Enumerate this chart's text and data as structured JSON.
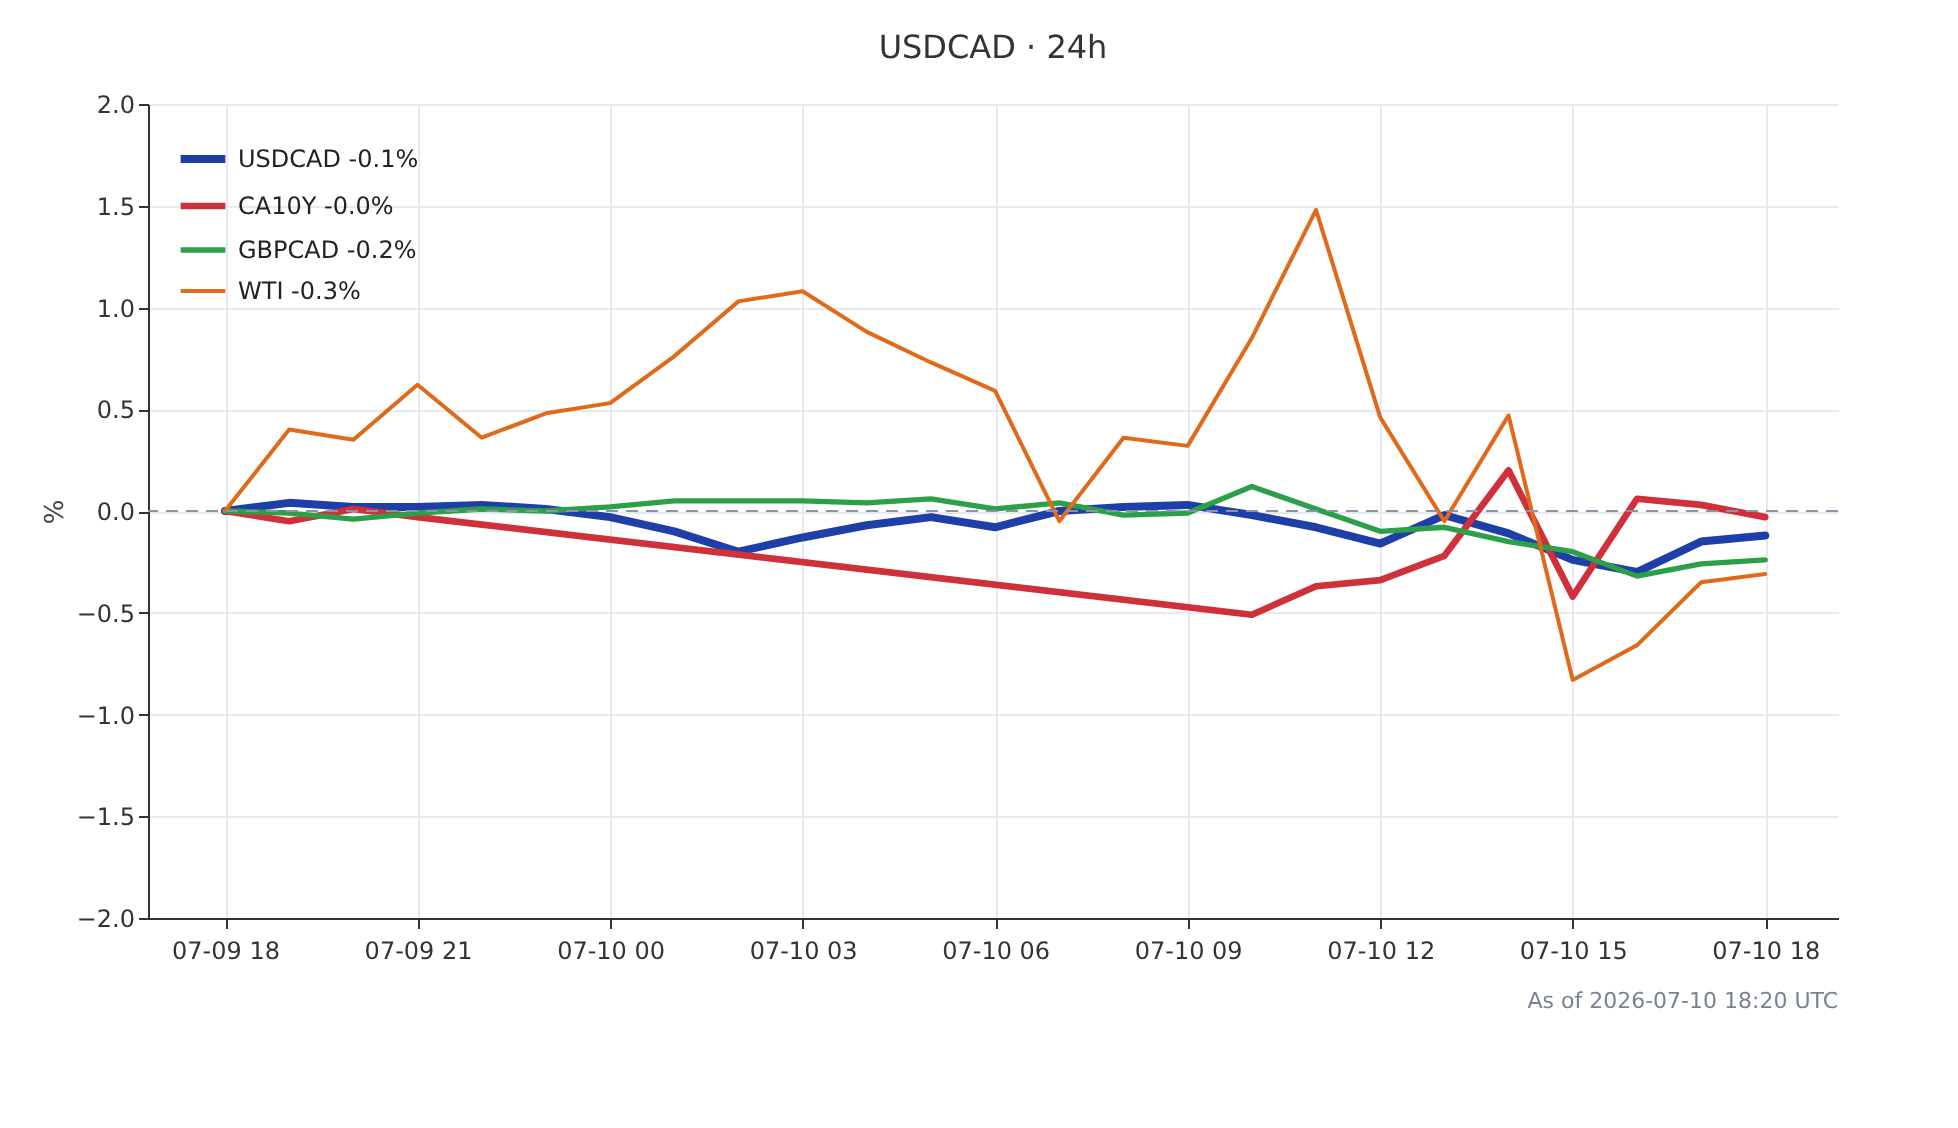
{
  "chart_data": {
    "type": "line",
    "title": "USDCAD · 24h",
    "ylabel": "%",
    "x": [
      "2026-07-09T18:00",
      "2026-07-09T19:00",
      "2026-07-09T20:00",
      "2026-07-09T21:00",
      "2026-07-09T22:00",
      "2026-07-09T23:00",
      "2026-07-10T00:00",
      "2026-07-10T01:00",
      "2026-07-10T02:00",
      "2026-07-10T03:00",
      "2026-07-10T04:00",
      "2026-07-10T05:00",
      "2026-07-10T06:00",
      "2026-07-10T07:00",
      "2026-07-10T08:00",
      "2026-07-10T09:00",
      "2026-07-10T10:00",
      "2026-07-10T11:00",
      "2026-07-10T12:00",
      "2026-07-10T13:00",
      "2026-07-10T14:00",
      "2026-07-10T15:00",
      "2026-07-10T16:00",
      "2026-07-10T17:00",
      "2026-07-10T18:00"
    ],
    "series": [
      {
        "name": "USDCAD -0.1%",
        "color": "#1f3fa8",
        "values": [
          0,
          0.04,
          0.02,
          0.02,
          0.03,
          0.01,
          -0.03,
          -0.1,
          -0.2,
          -0.13,
          -0.07,
          -0.03,
          -0.08,
          0.0,
          0.02,
          0.03,
          -0.02,
          -0.08,
          -0.16,
          -0.02,
          -0.11,
          -0.24,
          -0.3,
          -0.15,
          -0.12
        ]
      },
      {
        "name": "CA10Y -0.0%",
        "color": "#d0303a",
        "x": [
          "2026-07-09T18:00",
          "2026-07-09T19:00",
          "2026-07-09T20:00",
          "2026-07-09T21:00",
          "2026-07-10T10:00",
          "2026-07-10T11:00",
          "2026-07-10T12:00",
          "2026-07-10T13:00",
          "2026-07-10T14:00",
          "2026-07-10T15:00",
          "2026-07-10T16:00",
          "2026-07-10T17:00",
          "2026-07-10T18:00"
        ],
        "values": [
          0,
          -0.05,
          0.01,
          -0.03,
          -0.51,
          -0.37,
          -0.34,
          -0.22,
          0.2,
          -0.42,
          0.06,
          0.03,
          -0.03
        ]
      },
      {
        "name": "GBPCAD -0.2%",
        "color": "#2ca048",
        "values": [
          0,
          -0.01,
          -0.04,
          -0.01,
          0.01,
          0.0,
          0.02,
          0.05,
          0.05,
          0.05,
          0.04,
          0.06,
          0.01,
          0.04,
          -0.02,
          -0.01,
          0.12,
          0.01,
          -0.1,
          -0.08,
          -0.15,
          -0.2,
          -0.32,
          -0.26,
          -0.24
        ]
      },
      {
        "name": "WTI -0.3%",
        "color": "#e06a1a",
        "values": [
          0,
          0.4,
          0.35,
          0.62,
          0.36,
          0.48,
          0.53,
          0.76,
          1.03,
          1.08,
          0.88,
          0.73,
          0.59,
          -0.05,
          0.36,
          0.32,
          0.85,
          1.48,
          0.46,
          -0.05,
          0.47,
          -0.83,
          -0.66,
          -0.35,
          -0.31
        ]
      }
    ],
    "xlim": [
      "2026-07-09T16:48",
      "2026-07-10T19:08"
    ],
    "xticks": [
      {
        "value": "2026-07-09T18:00",
        "label": "07-09 18"
      },
      {
        "value": "2026-07-09T21:00",
        "label": "07-09 21"
      },
      {
        "value": "2026-07-10T00:00",
        "label": "07-10 00"
      },
      {
        "value": "2026-07-10T03:00",
        "label": "07-10 03"
      },
      {
        "value": "2026-07-10T06:00",
        "label": "07-10 06"
      },
      {
        "value": "2026-07-10T09:00",
        "label": "07-10 09"
      },
      {
        "value": "2026-07-10T12:00",
        "label": "07-10 12"
      },
      {
        "value": "2026-07-10T15:00",
        "label": "07-10 15"
      },
      {
        "value": "2026-07-10T18:00",
        "label": "07-10 18"
      }
    ],
    "ylim": [
      -2,
      2
    ],
    "yticks": [
      {
        "value": -2,
        "label": "−2.0"
      },
      {
        "value": -1.5,
        "label": "−1.5"
      },
      {
        "value": -1,
        "label": "−1.0"
      },
      {
        "value": -0.5,
        "label": "−0.5"
      },
      {
        "value": 0,
        "label": "0.0"
      },
      {
        "value": 0.5,
        "label": "0.5"
      },
      {
        "value": 1,
        "label": "1.0"
      },
      {
        "value": 1.5,
        "label": "1.5"
      },
      {
        "value": 2,
        "label": "2.0"
      }
    ],
    "ref_lines": [
      {
        "axis": "y",
        "value": 0,
        "color": "#8a94a6",
        "line_style": "dashed"
      }
    ],
    "grid": true,
    "legend": "top left",
    "line_style": "solid",
    "marker": "none",
    "annotations": [
      "As of 2026-07-10 18:20 UTC"
    ]
  }
}
